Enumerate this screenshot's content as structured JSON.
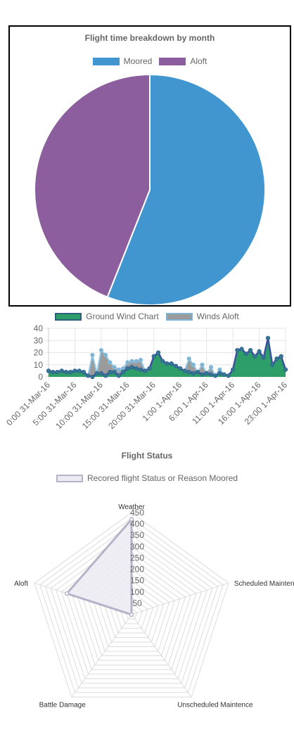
{
  "pie": {
    "title": "Flight time breakdown by month",
    "legend": [
      {
        "label": "Moored",
        "color": "#4196d0"
      },
      {
        "label": "Aloft",
        "color": "#8c5e9e"
      }
    ]
  },
  "wind": {
    "legend": [
      {
        "label": "Ground Wind Chart",
        "color": "#2e9e69",
        "border": "#2f5f7f"
      },
      {
        "label": "Winds Aloft",
        "color": "#9b9b9b",
        "border": "#7fb3d3"
      }
    ]
  },
  "radar": {
    "title": "Flight Status",
    "legend": [
      {
        "label": "Recored flight Status or Reason Moored",
        "color": "#ecebf3",
        "border": "#b5b3c8"
      }
    ]
  },
  "chart_data": [
    {
      "type": "pie",
      "title": "Flight time breakdown by month",
      "categories": [
        "Moored",
        "Aloft"
      ],
      "values": [
        56,
        44
      ],
      "colors": [
        "#4196d0",
        "#8c5e9e"
      ],
      "legend_position": "top"
    },
    {
      "type": "line",
      "title": "",
      "ylim": [
        0,
        40
      ],
      "yticks": [
        0,
        10,
        20,
        30,
        40
      ],
      "grid": true,
      "legend_position": "top",
      "x_tick_labels": [
        "0:00 31-Mar-16",
        "5:00 31-Mar-16",
        "10:00 31-Mar-16",
        "15:00 31-Mar-16",
        "20:00 31-Mar-16",
        "1:00 1-Apr-16",
        "6:00 1-Apr-16",
        "11:00 1-Apr-16",
        "16:00 1-Apr-16",
        "23:00 1-Apr-16"
      ],
      "series": [
        {
          "name": "Ground Wind Chart",
          "fill": "#2e9e69",
          "line": "#3a4fa0",
          "point": "#2f7a8c",
          "values": [
            5,
            4,
            4,
            5,
            4,
            4,
            5,
            5,
            4,
            1,
            0,
            3,
            3,
            1,
            4,
            4,
            1,
            4,
            7,
            8,
            7,
            6,
            5,
            7,
            17,
            20,
            13,
            11,
            11,
            9,
            7,
            5,
            4,
            3,
            4,
            2,
            3,
            2,
            1,
            3,
            2,
            1,
            6,
            22,
            23,
            19,
            22,
            17,
            21,
            16,
            32,
            10,
            15,
            17,
            6
          ]
        },
        {
          "name": "Winds Aloft",
          "fill": "#9b9b9b",
          "line": "#8ec5e3",
          "point": "#7fb3d3",
          "values": [
            5,
            4,
            4,
            5,
            4,
            4,
            5,
            5,
            4,
            1,
            18,
            3,
            22,
            18,
            12,
            8,
            6,
            7,
            12,
            13,
            13,
            14,
            5,
            7,
            17,
            20,
            13,
            11,
            11,
            9,
            7,
            5,
            15,
            10,
            4,
            10,
            3,
            8,
            1,
            6,
            2,
            1,
            6,
            22,
            23,
            19,
            22,
            17,
            21,
            16,
            32,
            10,
            15,
            17,
            6
          ]
        }
      ]
    },
    {
      "type": "radar",
      "title": "Flight Status",
      "categories": [
        "Weather",
        "Scheduled Maintence",
        "Unscheduled Maintence",
        "Battle Damage",
        "Aloft"
      ],
      "rticks": [
        50,
        100,
        150,
        200,
        250,
        300,
        350,
        400,
        450
      ],
      "rlim": [
        0,
        450
      ],
      "series": [
        {
          "name": "Recored flight Status or Reason Moored",
          "values": [
            420,
            0,
            0,
            0,
            300
          ],
          "fill": "#ecebf3",
          "line": "#b5b3c8"
        }
      ]
    }
  ]
}
